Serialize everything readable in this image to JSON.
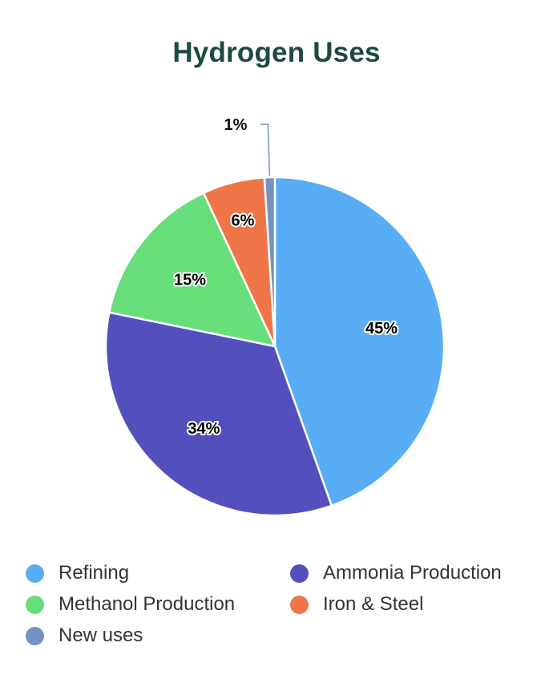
{
  "chart_data": {
    "type": "pie",
    "title": "Hydrogen Uses",
    "slices": [
      {
        "label": "Refining",
        "value": 45,
        "display": "45%",
        "color": "#58adf5"
      },
      {
        "label": "Ammonia Production",
        "value": 34,
        "display": "34%",
        "color": "#5350be"
      },
      {
        "label": "Methanol Production",
        "value": 15,
        "display": "15%",
        "color": "#67de7a"
      },
      {
        "label": "Iron & Steel",
        "value": 6,
        "display": "6%",
        "color": "#ee7648"
      },
      {
        "label": "New uses",
        "value": 1,
        "display": "1%",
        "color": "#7690bf"
      }
    ],
    "legend_position": "bottom"
  }
}
